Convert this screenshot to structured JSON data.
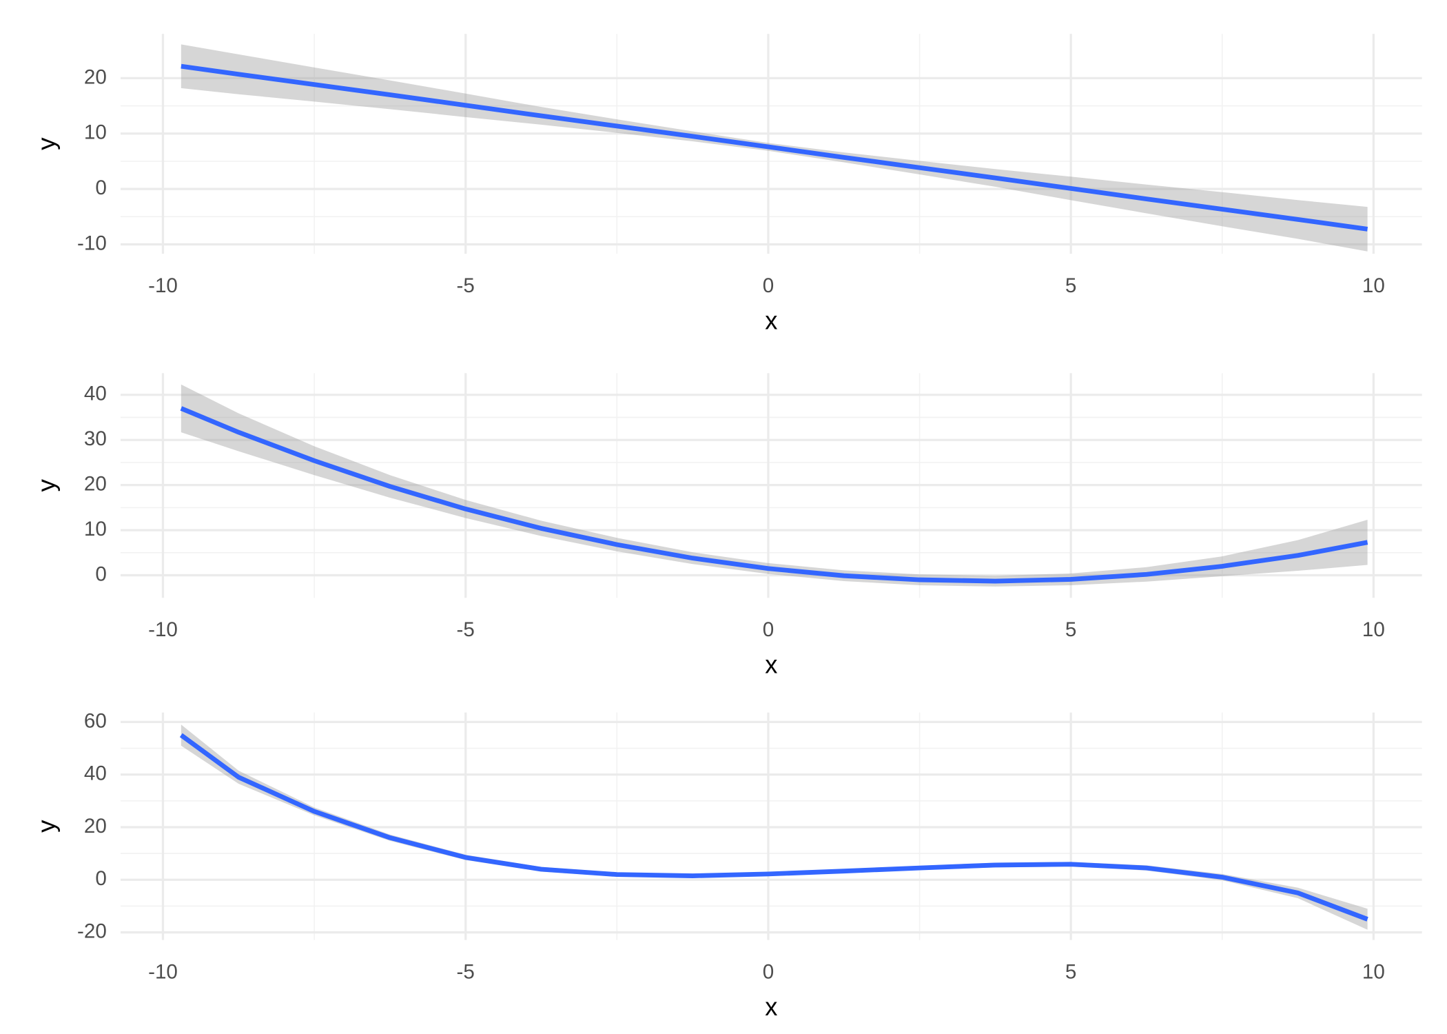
{
  "chart_data": [
    {
      "type": "line",
      "x_label": "x",
      "y_label": "y",
      "xlim": [
        -10.7,
        10.8
      ],
      "xticks": [
        -10,
        -5,
        0,
        5,
        10
      ],
      "ylim": [
        -11.7,
        28
      ],
      "yticks": [
        -10,
        0,
        10,
        20
      ],
      "grid": true,
      "x": [
        -9.7,
        -8.75,
        -7.5,
        -6.25,
        -5,
        -3.75,
        -2.5,
        -1.25,
        0,
        1.25,
        2.5,
        3.75,
        5,
        6.25,
        7.5,
        8.75,
        9.9
      ],
      "color": "#3366ff",
      "band_color": "#999999",
      "values": [
        22.15,
        20.7,
        18.85,
        17.0,
        15.1,
        13.2,
        11.35,
        9.5,
        7.6,
        5.7,
        3.85,
        2.0,
        0.1,
        -1.8,
        -3.65,
        -5.5,
        -7.25
      ],
      "lower": [
        18.2,
        17.1,
        15.77,
        14.4,
        12.98,
        11.6,
        10.13,
        8.6,
        6.89,
        4.8,
        2.63,
        0.4,
        -2.02,
        -4.4,
        -6.73,
        -9.0,
        -11.27
      ],
      "upper": [
        26.1,
        24.3,
        21.93,
        19.6,
        17.22,
        14.8,
        12.57,
        10.4,
        8.31,
        6.6,
        5.07,
        3.6,
        2.22,
        0.8,
        -0.57,
        -2.0,
        -3.23
      ]
    },
    {
      "type": "line",
      "x_label": "x",
      "y_label": "y",
      "xlim": [
        -10.7,
        10.8
      ],
      "xticks": [
        -10,
        -5,
        0,
        5,
        10
      ],
      "ylim": [
        -5,
        44.8
      ],
      "yticks": [
        0,
        10,
        20,
        30,
        40
      ],
      "grid": true,
      "x": [
        -9.7,
        -8.75,
        -7.5,
        -6.25,
        -5,
        -3.75,
        -2.5,
        -1.25,
        0,
        1.25,
        2.5,
        3.75,
        5,
        6.25,
        7.5,
        8.75,
        9.9
      ],
      "color": "#3366ff",
      "band_color": "#999999",
      "values": [
        37.0,
        31.7,
        25.4,
        19.7,
        14.7,
        10.4,
        6.8,
        3.8,
        1.5,
        -0.1,
        -1.0,
        -1.3,
        -0.9,
        0.2,
        2.0,
        4.4,
        7.3
      ],
      "lower": [
        31.7,
        27.5,
        22.2,
        17.2,
        12.7,
        8.7,
        5.3,
        2.5,
        0.3,
        -1.3,
        -2.2,
        -2.5,
        -2.2,
        -1.4,
        -0.2,
        1.0,
        2.3
      ],
      "upper": [
        42.3,
        35.9,
        28.6,
        22.2,
        16.7,
        12.1,
        8.3,
        5.1,
        2.7,
        1.1,
        0.2,
        -0.1,
        0.4,
        1.8,
        4.2,
        7.8,
        12.3
      ]
    },
    {
      "type": "line",
      "x_label": "x",
      "y_label": "y",
      "xlim": [
        -10.7,
        10.8
      ],
      "xticks": [
        -10,
        -5,
        0,
        5,
        10
      ],
      "ylim": [
        -22.9,
        63.6
      ],
      "yticks": [
        -20,
        0,
        20,
        40,
        60
      ],
      "grid": true,
      "x": [
        -9.7,
        -8.75,
        -7.5,
        -6.25,
        -5,
        -3.75,
        -2.5,
        -1.25,
        0,
        1.25,
        2.5,
        3.75,
        5,
        6.25,
        7.5,
        8.75,
        9.9
      ],
      "color": "#3366ff",
      "band_color": "#999999",
      "values": [
        55,
        39,
        26,
        16,
        8.5,
        4,
        2,
        1.5,
        2.2,
        3.3,
        4.5,
        5.6,
        5.9,
        4.5,
        1,
        -5,
        -15
      ],
      "lower": [
        51,
        36.5,
        24.5,
        14.8,
        7.5,
        3.1,
        1.2,
        0.7,
        1.4,
        2.5,
        3.7,
        4.7,
        5.0,
        3.5,
        -0.2,
        -7,
        -19
      ],
      "upper": [
        59,
        41.5,
        27.5,
        17.2,
        9.5,
        4.9,
        2.8,
        2.3,
        3.0,
        4.1,
        5.3,
        6.5,
        6.8,
        5.5,
        2.2,
        -3,
        -11
      ]
    }
  ]
}
